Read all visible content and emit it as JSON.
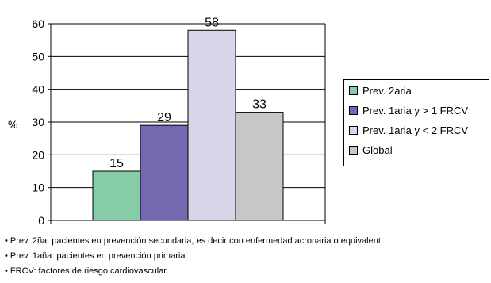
{
  "chart_data": {
    "type": "bar",
    "ylabel": "%",
    "ylim": [
      0,
      60
    ],
    "yticks": [
      0,
      10,
      20,
      30,
      40,
      50,
      60
    ],
    "grid": true,
    "legend_position": "right",
    "series": [
      {
        "name": "Prev. 2aria",
        "value": 15,
        "color": "#86cca6"
      },
      {
        "name": "Prev. 1aria y > 1 FRCV",
        "value": 29,
        "color": "#7568b0"
      },
      {
        "name": "Prev. 1aria y < 2 FRCV",
        "value": 58,
        "color": "#d6d5ea"
      },
      {
        "name": "Global",
        "value": 33,
        "color": "#c7c7c7"
      }
    ]
  },
  "notes": [
    "• Prev. 2ña: pacientes en prevención secundaria, es decir con enfermedad acronaria o equivalent",
    "• Prev. 1aña: pacientes en prevención primaria.",
    "• FRCV: factores de riesgo cardiovascular."
  ]
}
